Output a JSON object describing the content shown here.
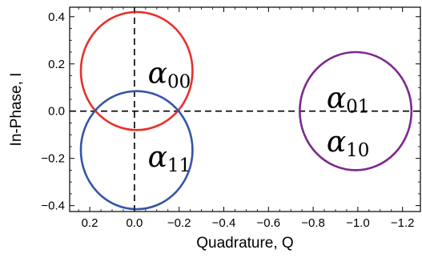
{
  "chart_data": {
    "type": "scatter",
    "title": "",
    "xlabel": "Quadrature, Q",
    "ylabel": "In-Phase, I",
    "xlim": [
      0.29,
      -1.28
    ],
    "ylim": [
      -0.425,
      0.44
    ],
    "x_reversed": true,
    "grid": false,
    "x_ticks": [
      {
        "value": 0.2,
        "label": "0.2"
      },
      {
        "value": 0.0,
        "label": "0.0"
      },
      {
        "value": -0.2,
        "label": "−0.2"
      },
      {
        "value": -0.4,
        "label": "−0.4"
      },
      {
        "value": -0.6,
        "label": "−0.6"
      },
      {
        "value": -0.8,
        "label": "−0.8"
      },
      {
        "value": -1.0,
        "label": "−1.0"
      },
      {
        "value": -1.2,
        "label": "−1.2"
      }
    ],
    "y_ticks": [
      {
        "value": 0.4,
        "label": "0.4"
      },
      {
        "value": 0.2,
        "label": "0.2"
      },
      {
        "value": 0.0,
        "label": "0.0"
      },
      {
        "value": -0.2,
        "label": "−0.2"
      },
      {
        "value": -0.4,
        "label": "−0.4"
      }
    ],
    "reference_lines": [
      {
        "orientation": "horizontal",
        "value": 0.0,
        "style": "dashed"
      },
      {
        "orientation": "vertical",
        "value": 0.0,
        "style": "dashed"
      }
    ],
    "circles": [
      {
        "center": [
          -0.01,
          0.17
        ],
        "radius": 0.25,
        "color": "#e8302b",
        "label_base": "α",
        "label_sub": "00"
      },
      {
        "center": [
          -0.01,
          -0.165
        ],
        "radius": 0.25,
        "color": "#3556a6",
        "label_base": "α",
        "label_sub": "11"
      },
      {
        "center": [
          -0.99,
          0.0
        ],
        "radius": 0.25,
        "color": "#7b2a8c",
        "label_base": "α",
        "label_sub": "01"
      }
    ],
    "annotations": [
      {
        "base": "α",
        "sub": "00",
        "at": [
          -0.06,
          0.16
        ]
      },
      {
        "base": "α",
        "sub": "11",
        "at": [
          -0.06,
          -0.195
        ]
      },
      {
        "base": "α",
        "sub": "01",
        "at": [
          -0.86,
          0.055
        ]
      },
      {
        "base": "α",
        "sub": "10",
        "at": [
          -0.86,
          -0.13
        ]
      }
    ]
  }
}
